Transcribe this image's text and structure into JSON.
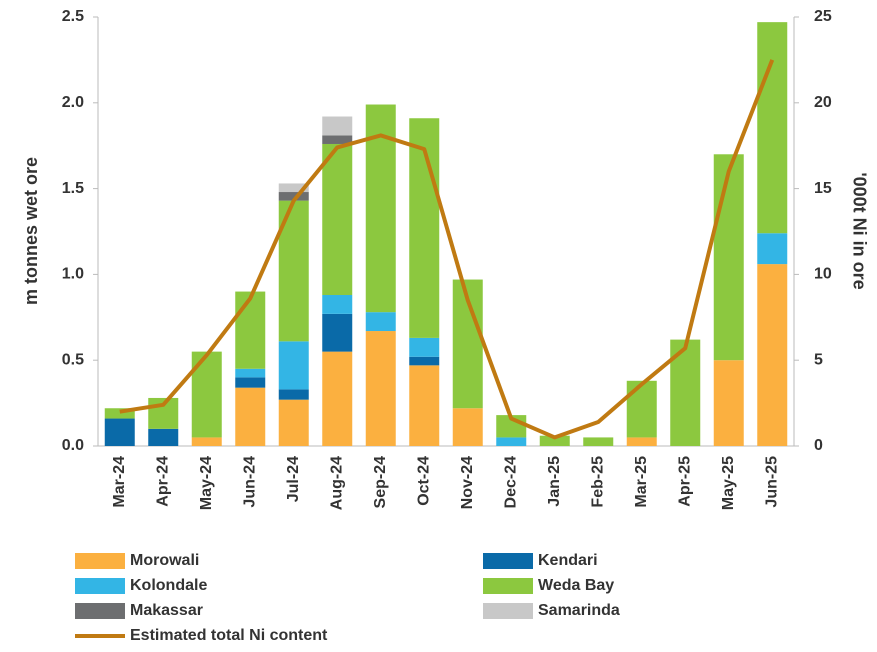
{
  "chart_data": {
    "type": "bar",
    "stacked": true,
    "categories": [
      "Mar-24",
      "Apr-24",
      "May-24",
      "Jun-24",
      "Jul-24",
      "Aug-24",
      "Sep-24",
      "Oct-24",
      "Nov-24",
      "Dec-24",
      "Jan-25",
      "Feb-25",
      "Mar-25",
      "Apr-25",
      "May-25",
      "Jun-25"
    ],
    "ylabel": "m tonnes wet ore",
    "y2label": "'000t Ni in ore",
    "ylim": [
      0,
      2.5
    ],
    "yticks": [
      {
        "value": 0,
        "label": "0.0"
      },
      0.5,
      {
        "value": 1,
        "label": "1.0"
      },
      1.5,
      {
        "value": 2,
        "label": "2.0"
      },
      2.5
    ],
    "y2lim": [
      0,
      25
    ],
    "y2ticks": [
      0,
      5,
      10,
      15,
      20,
      25
    ],
    "series": [
      {
        "name": "Morowali",
        "color": "#fbb040",
        "values": [
          0,
          0,
          0.05,
          0.34,
          0.27,
          0.55,
          0.67,
          0.47,
          0.22,
          0,
          0,
          0,
          0.05,
          0,
          0.5,
          1.06
        ]
      },
      {
        "name": "Kendari",
        "color": "#0a6aa8",
        "values": [
          0.16,
          0.1,
          0,
          0.06,
          0.06,
          0.22,
          0,
          0.05,
          0,
          0,
          0,
          0,
          0,
          0,
          0,
          0
        ]
      },
      {
        "name": "Kolondale",
        "color": "#33b5e5",
        "values": [
          0,
          0,
          0,
          0.05,
          0.28,
          0.11,
          0.11,
          0.11,
          0,
          0.05,
          0,
          0,
          0,
          0,
          0,
          0.18
        ]
      },
      {
        "name": "Weda Bay",
        "color": "#8cc83f",
        "values": [
          0.06,
          0.18,
          0.5,
          0.45,
          0.82,
          0.88,
          1.21,
          1.28,
          0.75,
          0.13,
          0.06,
          0.05,
          0.33,
          0.62,
          1.2,
          1.23
        ]
      },
      {
        "name": "Makassar",
        "color": "#6d6e70",
        "values": [
          0,
          0,
          0,
          0,
          0.05,
          0.05,
          0,
          0,
          0,
          0,
          0,
          0,
          0,
          0,
          0,
          0
        ]
      },
      {
        "name": "Samarinda",
        "color": "#c8c8c8",
        "values": [
          0,
          0,
          0,
          0,
          0.05,
          0.11,
          0,
          0,
          0,
          0,
          0,
          0,
          0,
          0,
          0,
          0
        ]
      },
      {
        "name": "Estimated total Ni content",
        "color": "#c07a12",
        "type": "line",
        "axis": "y2",
        "values": [
          2.0,
          2.4,
          5.3,
          8.6,
          14.3,
          17.4,
          18.1,
          17.3,
          8.5,
          1.6,
          0.5,
          1.4,
          3.6,
          5.7,
          16.0,
          22.5
        ]
      }
    ]
  }
}
